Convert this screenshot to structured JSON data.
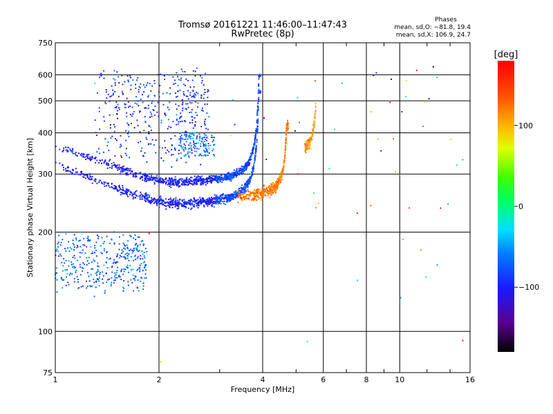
{
  "chart_data": {
    "type": "scatter",
    "title": "Tromsø 20161221 11:46:00–11:47:43",
    "subtitle": "RwPretec (8p)",
    "xlabel": "Frequency [MHz]",
    "ylabel": "Stationary phase Virtual Height [km]",
    "x_scale": "log2",
    "y_scale": "log",
    "xlim": [
      1,
      16
    ],
    "ylim": [
      75,
      750
    ],
    "x_ticks": [
      "1",
      "2",
      "4",
      "6",
      "8",
      "10",
      "16"
    ],
    "y_ticks": [
      "75",
      "100",
      "200",
      "300",
      "400",
      "500",
      "600",
      "750"
    ],
    "grid": true,
    "phase_stats": {
      "title": "Phases",
      "line1": "mean, sd,O: −81.8, 19.4",
      "line2": "mean, sd,X: 106.9, 24.7"
    },
    "colorbar": {
      "label": "[deg]",
      "ticks": [
        "100",
        "0",
        "−100"
      ],
      "range": [
        -180,
        180
      ],
      "colormap": "rainbow"
    },
    "traces": [
      {
        "description": "O-mode F trace",
        "f_start": 1.0,
        "f_end": 3.95,
        "h_min": 235,
        "h_cusp": 600,
        "phase": -100
      },
      {
        "description": "X-mode F trace",
        "f_start": 3.3,
        "f_end": 4.75,
        "h_min": 250,
        "h_cusp": 420,
        "phase": 120
      }
    ]
  }
}
